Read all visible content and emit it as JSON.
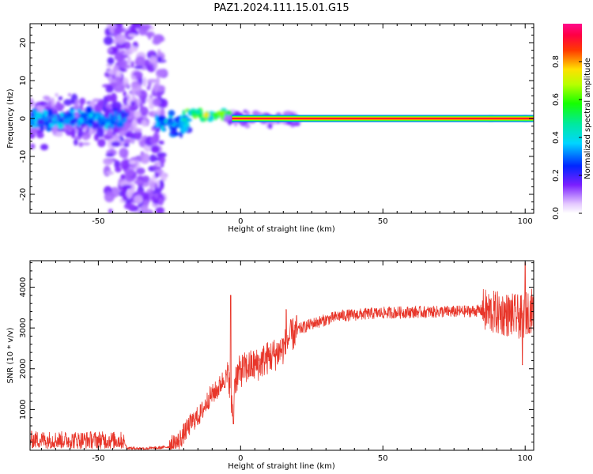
{
  "chart_data": [
    {
      "type": "heatmap",
      "title": "PAZ1.2024.111.15.01.G15",
      "xlabel": "Height of straight line (km)",
      "ylabel": "Frequency (Hz)",
      "xlim": [
        -74,
        103
      ],
      "ylim": [
        -25,
        25
      ],
      "xticks": [
        -50,
        0,
        50,
        100
      ],
      "yticks": [
        -20,
        -10,
        0,
        10,
        20
      ],
      "colorbar": {
        "label": "Normalized spectral amplitude",
        "range": [
          0,
          1
        ],
        "ticks": [
          0.0,
          0.2,
          0.4,
          0.6,
          0.8
        ],
        "colormap": "gist_ncar-like (white-violet-blue-cyan-green-yellow-red-magenta)"
      },
      "features": [
        {
          "x_range": [
            -74,
            -37
          ],
          "freq_center": 0,
          "freq_spread": 5,
          "amplitude": 0.25
        },
        {
          "x_range": [
            -47,
            -27
          ],
          "freq_center": 0,
          "freq_spread": 25,
          "amplitude": 0.12
        },
        {
          "x_range": [
            -30,
            -18
          ],
          "freq_center": -1.5,
          "freq_spread": 3,
          "amplitude": 0.3
        },
        {
          "x_range": [
            -20,
            -3
          ],
          "freq_center": 1,
          "freq_spread": 2,
          "amplitude": 0.55
        },
        {
          "x_range": [
            -3,
            100
          ],
          "freq_center": 0,
          "freq_spread": 0.6,
          "amplitude": 0.9
        }
      ],
      "grid": false
    },
    {
      "type": "line",
      "xlabel": "Height of straight line (km)",
      "ylabel": "SNR (10 * v/v)",
      "xlim": [
        -74,
        103
      ],
      "ylim": [
        0,
        4650
      ],
      "xticks": [
        -50,
        0,
        50,
        100
      ],
      "yticks": [
        1000,
        2000,
        3000,
        4000
      ],
      "color": "#e8362a",
      "series": [
        {
          "x": [
            -74,
            -60,
            -50,
            -41,
            -40,
            -35,
            -30,
            -25,
            -22,
            -20,
            -17,
            -14,
            -11,
            -8,
            -6,
            -4,
            -3,
            -2,
            0,
            3,
            6,
            9,
            12,
            15,
            17,
            20,
            25,
            30,
            35,
            40,
            45,
            50,
            55,
            60,
            65,
            70,
            75,
            80,
            85,
            88,
            92,
            96,
            99,
            101,
            103
          ],
          "y": [
            260,
            250,
            250,
            240,
            50,
            40,
            50,
            90,
            200,
            400,
            700,
            900,
            1300,
            1500,
            1750,
            1800,
            900,
            1750,
            1950,
            2050,
            2100,
            2250,
            2350,
            2500,
            2750,
            2950,
            3100,
            3200,
            3300,
            3320,
            3350,
            3370,
            3380,
            3390,
            3390,
            3400,
            3400,
            3410,
            3430,
            3380,
            3350,
            3300,
            3250,
            3400,
            3450
          ]
        }
      ],
      "peaks": [
        {
          "x": -3.5,
          "y": 3800
        },
        {
          "x": 16,
          "y": 3450
        },
        {
          "x": 100,
          "y": 4600
        }
      ],
      "dips": [
        {
          "x": -2.5,
          "y": 650
        },
        {
          "x": 99,
          "y": 2100
        }
      ],
      "grid": false
    }
  ]
}
